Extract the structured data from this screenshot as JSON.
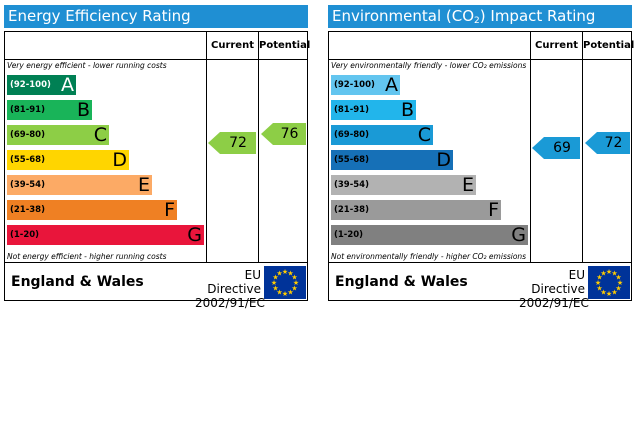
{
  "energy": {
    "title": "Energy Efficiency Rating",
    "current_label": "Current",
    "potential_label": "Potential",
    "top_note": "Very energy efficient - lower running costs",
    "bottom_note": "Not energy efficient - higher running costs",
    "bands": [
      {
        "range": "(92-100)",
        "letter": "A",
        "color": "#008054"
      },
      {
        "range": "(81-91)",
        "letter": "B",
        "color": "#19b459"
      },
      {
        "range": "(69-80)",
        "letter": "C",
        "color": "#8dce46"
      },
      {
        "range": "(55-68)",
        "letter": "D",
        "color": "#ffd500"
      },
      {
        "range": "(39-54)",
        "letter": "E",
        "color": "#fcaa65"
      },
      {
        "range": "(21-38)",
        "letter": "F",
        "color": "#ef8023"
      },
      {
        "range": "(1-20)",
        "letter": "G",
        "color": "#e9153b"
      }
    ],
    "current": {
      "value": "72",
      "color": "#8dce46"
    },
    "potential": {
      "value": "76",
      "color": "#8dce46"
    },
    "footer_region": "England & Wales",
    "directive_line1": "EU Directive",
    "directive_line2": "2002/91/EC"
  },
  "environment": {
    "title_prefix": "Environmental (CO",
    "title_sub": "2",
    "title_suffix": ") Impact Rating",
    "current_label": "Current",
    "potential_label": "Potential",
    "top_note": "Very environmentally friendly - lower CO₂ emissions",
    "bottom_note": "Not environmentally friendly - higher CO₂ emissions",
    "bands": [
      {
        "range": "(92-100)",
        "letter": "A",
        "color": "#63c5ef"
      },
      {
        "range": "(81-91)",
        "letter": "B",
        "color": "#22b5eb"
      },
      {
        "range": "(69-80)",
        "letter": "C",
        "color": "#1a9ad6"
      },
      {
        "range": "(55-68)",
        "letter": "D",
        "color": "#1670b7"
      },
      {
        "range": "(39-54)",
        "letter": "E",
        "color": "#b2b2b2"
      },
      {
        "range": "(21-38)",
        "letter": "F",
        "color": "#9a9a9a"
      },
      {
        "range": "(1-20)",
        "letter": "G",
        "color": "#808080"
      }
    ],
    "current": {
      "value": "69",
      "color": "#1a9ad6"
    },
    "potential": {
      "value": "72",
      "color": "#1a9ad6"
    },
    "footer_region": "England & Wales",
    "directive_line1": "EU Directive",
    "directive_line2": "2002/91/EC"
  }
}
